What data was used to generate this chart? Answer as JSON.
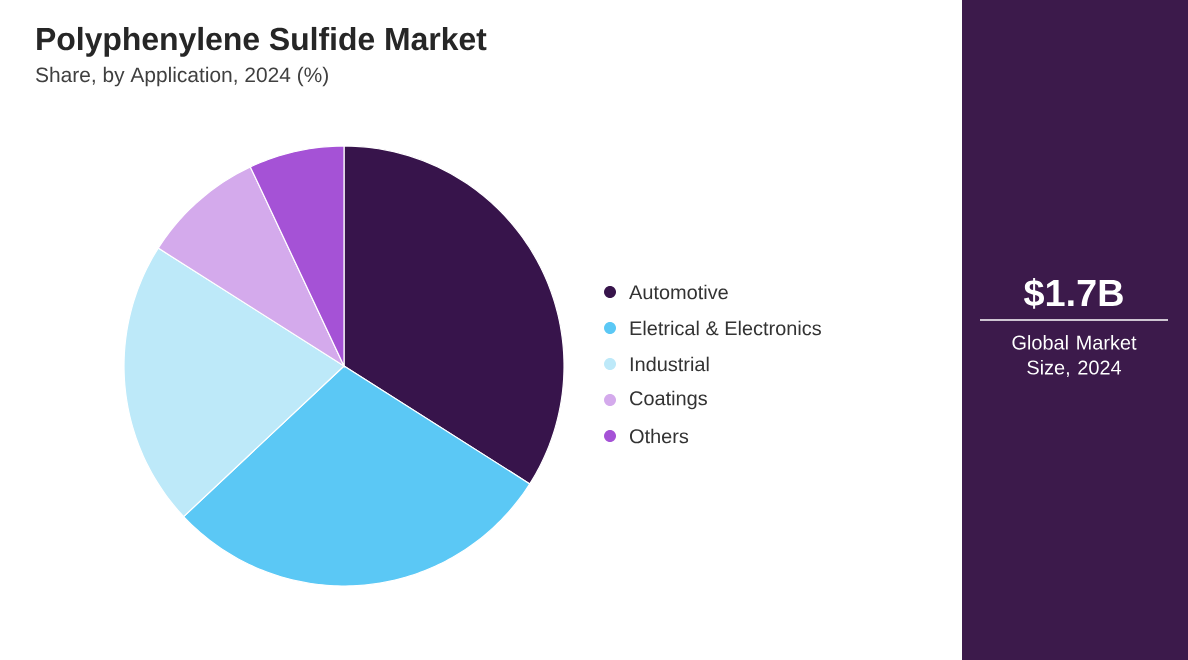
{
  "chart_data": {
    "type": "pie",
    "title": "Polyphenylene Sulfide Market",
    "subtitle": "Share, by Application, 2024 (%)",
    "categories": [
      "Automotive",
      "Eletrical & Electronics",
      "Industrial",
      "Coatings",
      "Others"
    ],
    "values": [
      34,
      29,
      21,
      9,
      7
    ],
    "colors": [
      "#37144b",
      "#5bc8f5",
      "#bde9f9",
      "#d4aaec",
      "#a552d6"
    ],
    "legend": "right",
    "annotations": [
      "$1.7B",
      "Global Market Size, 2024"
    ]
  }
}
